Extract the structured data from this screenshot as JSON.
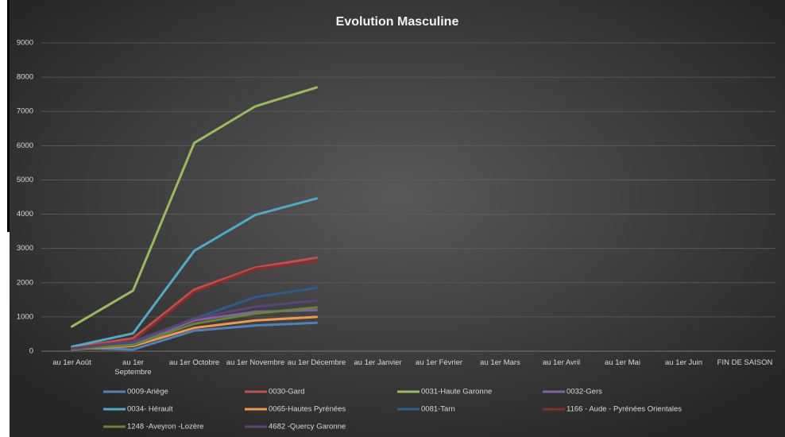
{
  "chart_data": {
    "type": "line",
    "title": "Evolution Masculine",
    "categories": [
      "au 1er Août",
      "au 1er Septembre",
      "au 1er Octobre",
      "au 1er Novembre",
      "au 1er Décembre",
      "au 1er Janvier",
      "au 1er Février",
      "au 1er Mars",
      "au 1er Avril",
      "au 1er Mai",
      "au 1er Juin",
      "FIN DE SAISON"
    ],
    "ylim": [
      0,
      9000
    ],
    "yticks": [
      0,
      1000,
      2000,
      3000,
      4000,
      5000,
      6000,
      7000,
      8000,
      9000
    ],
    "grid": true,
    "legend": "bottom",
    "series": [
      {
        "name": "0009-Ariège",
        "color": "#4f81bd",
        "values": [
          100,
          50,
          600,
          750,
          830,
          null,
          null,
          null,
          null,
          null,
          null,
          null
        ]
      },
      {
        "name": "0030-Gard",
        "color": "#c0504d",
        "values": [
          100,
          380,
          1800,
          2440,
          2730,
          null,
          null,
          null,
          null,
          null,
          null,
          null
        ]
      },
      {
        "name": "0031-Haute Garonne",
        "color": "#9bbb59",
        "values": [
          720,
          1770,
          6080,
          7150,
          7700,
          null,
          null,
          null,
          null,
          null,
          null,
          null
        ]
      },
      {
        "name": "0032-Gers",
        "color": "#8064a2",
        "values": [
          50,
          200,
          900,
          1150,
          1200,
          null,
          null,
          null,
          null,
          null,
          null,
          null
        ]
      },
      {
        "name": "0034- Hérault",
        "color": "#4bacc6",
        "values": [
          130,
          520,
          2930,
          3980,
          4460,
          null,
          null,
          null,
          null,
          null,
          null,
          null
        ]
      },
      {
        "name": "0065-Hautes Pyrénées",
        "color": "#f79646",
        "values": [
          60,
          150,
          680,
          900,
          1000,
          null,
          null,
          null,
          null,
          null,
          null,
          null
        ]
      },
      {
        "name": "0081-Tarn",
        "color": "#2c5d8f",
        "values": [
          80,
          250,
          950,
          1580,
          1850,
          null,
          null,
          null,
          null,
          null,
          null,
          null
        ]
      },
      {
        "name": "1166 - Aude - Pyrénées Orientales",
        "color": "#8b2d2a",
        "values": [
          80,
          300,
          1730,
          2400,
          2630,
          null,
          null,
          null,
          null,
          null,
          null,
          null
        ]
      },
      {
        "name": "1248 -Aveyron -Lozère",
        "color": "#6a8436",
        "values": [
          60,
          180,
          800,
          1100,
          1280,
          null,
          null,
          null,
          null,
          null,
          null,
          null
        ]
      },
      {
        "name": "4682 -Quercy Garonne",
        "color": "#5a4675",
        "values": [
          70,
          280,
          950,
          1300,
          1480,
          null,
          null,
          null,
          null,
          null,
          null,
          null
        ]
      }
    ]
  }
}
